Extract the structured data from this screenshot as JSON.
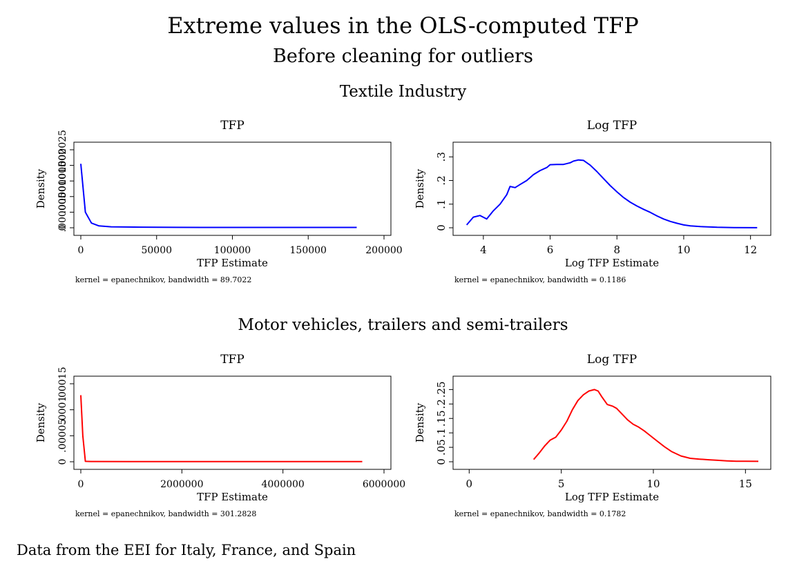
{
  "title": "Extreme values in the OLS-computed TFP",
  "subtitle": "Before cleaning for outliers",
  "sections": [
    {
      "label": "Textile Industry"
    },
    {
      "label": "Motor vehicles, trailers and semi-trailers"
    }
  ],
  "note": "Data from the EEI for Italy, France, and Spain",
  "colors": {
    "textile": "#0000ff",
    "motor": "#ff0000"
  },
  "chart_data": [
    {
      "type": "line",
      "title": "TFP",
      "xlabel": "TFP Estimate",
      "ylabel": "Density",
      "note": "kernel = epanechnikov, bandwidth = 89.7022",
      "xlim": [
        0,
        200000
      ],
      "xticks": [
        0,
        50000,
        100000,
        150000,
        200000
      ],
      "xtick_labels": [
        "0",
        "50000",
        "100000",
        "150000",
        "200000"
      ],
      "ylim": [
        0,
        2.5e-05
      ],
      "yticks": [
        0,
        5e-06,
        1e-05,
        1.5e-05,
        2e-05,
        2.5e-05
      ],
      "ytick_labels": [
        "0",
        ".000005",
        ".00001",
        ".000015",
        ".00002",
        ".000025"
      ],
      "color": "#0000ff",
      "x": [
        0,
        3000,
        7000,
        12000,
        20000,
        40000,
        80000,
        120000,
        160000,
        182000
      ],
      "y": [
        2.05e-05,
        5e-06,
        1.5e-06,
        6e-07,
        3e-07,
        2e-07,
        1e-07,
        1e-07,
        1e-07,
        1e-07
      ]
    },
    {
      "type": "line",
      "title": "Log TFP",
      "xlabel": "Log TFP Estimate",
      "ylabel": "Density",
      "note": "kernel = epanechnikov, bandwidth = 0.1186",
      "xlim": [
        3.3,
        12.4
      ],
      "xticks": [
        4,
        6,
        8,
        10,
        12
      ],
      "xtick_labels": [
        "4",
        "6",
        "8",
        "10",
        "12"
      ],
      "ylim": [
        0,
        0.33
      ],
      "yticks": [
        0,
        0.1,
        0.2,
        0.3
      ],
      "ytick_labels": [
        "0",
        ".1",
        ".2",
        ".3"
      ],
      "color": "#0000ff",
      "x": [
        3.5,
        3.7,
        3.9,
        4.1,
        4.3,
        4.5,
        4.7,
        4.8,
        4.95,
        5.1,
        5.3,
        5.5,
        5.7,
        5.9,
        6.0,
        6.2,
        6.4,
        6.6,
        6.7,
        6.85,
        7.0,
        7.2,
        7.4,
        7.6,
        7.8,
        8.0,
        8.2,
        8.4,
        8.6,
        8.8,
        9.0,
        9.2,
        9.4,
        9.6,
        9.8,
        10.0,
        10.2,
        10.5,
        11.0,
        11.5,
        12.2
      ],
      "y": [
        0.012,
        0.045,
        0.052,
        0.037,
        0.072,
        0.1,
        0.14,
        0.175,
        0.17,
        0.183,
        0.2,
        0.225,
        0.242,
        0.255,
        0.267,
        0.268,
        0.268,
        0.275,
        0.282,
        0.287,
        0.285,
        0.265,
        0.238,
        0.208,
        0.178,
        0.152,
        0.128,
        0.108,
        0.092,
        0.078,
        0.065,
        0.05,
        0.037,
        0.027,
        0.019,
        0.012,
        0.008,
        0.005,
        0.002,
        0.0008,
        0.0002
      ]
    },
    {
      "type": "line",
      "title": "TFP",
      "xlabel": "TFP Estimate",
      "ylabel": "Density",
      "note": "kernel = epanechnikov, bandwidth = 301.2828",
      "xlim": [
        0,
        6000000
      ],
      "xticks": [
        0,
        2000000,
        4000000,
        6000000
      ],
      "xtick_labels": [
        "0",
        "2000000",
        "4000000",
        "6000000"
      ],
      "ylim": [
        0,
        0.00015
      ],
      "yticks": [
        0,
        5e-05,
        0.0001,
        0.00015
      ],
      "ytick_labels": [
        "0",
        ".00005",
        ".0001",
        ".00015"
      ],
      "color": "#ff0000",
      "x": [
        0,
        40000,
        90000,
        200000,
        1000000,
        3000000,
        5570000
      ],
      "y": [
        0.000128,
        5e-05,
        8e-07,
        5e-07,
        3e-07,
        2e-07,
        2e-07
      ]
    },
    {
      "type": "line",
      "title": "Log TFP",
      "xlabel": "Log TFP Estimate",
      "ylabel": "Density",
      "note": "kernel = epanechnikov, bandwidth = 0.1782",
      "xlim": [
        -0.5,
        16
      ],
      "xticks": [
        0,
        5,
        10,
        15
      ],
      "xtick_labels": [
        "0",
        "5",
        "10",
        "15"
      ],
      "ylim": [
        0,
        0.27
      ],
      "yticks": [
        0,
        0.05,
        0.1,
        0.15,
        0.2,
        0.25
      ],
      "ytick_labels": [
        "0",
        ".05",
        ".1",
        ".15",
        ".2",
        ".25"
      ],
      "color": "#ff0000",
      "x": [
        3.5,
        3.8,
        4.1,
        4.4,
        4.7,
        5.0,
        5.3,
        5.6,
        5.9,
        6.2,
        6.5,
        6.8,
        7.0,
        7.2,
        7.5,
        7.8,
        8.0,
        8.3,
        8.6,
        8.9,
        9.2,
        9.5,
        9.8,
        10.2,
        10.6,
        11.0,
        11.5,
        12.0,
        12.5,
        13.0,
        13.5,
        14.0,
        14.5,
        15.0,
        15.7
      ],
      "y": [
        0.008,
        0.03,
        0.055,
        0.075,
        0.085,
        0.11,
        0.14,
        0.18,
        0.212,
        0.232,
        0.245,
        0.25,
        0.245,
        0.225,
        0.198,
        0.192,
        0.185,
        0.165,
        0.145,
        0.13,
        0.12,
        0.107,
        0.092,
        0.072,
        0.052,
        0.035,
        0.02,
        0.012,
        0.009,
        0.007,
        0.005,
        0.003,
        0.002,
        0.002,
        0.0015
      ]
    }
  ]
}
